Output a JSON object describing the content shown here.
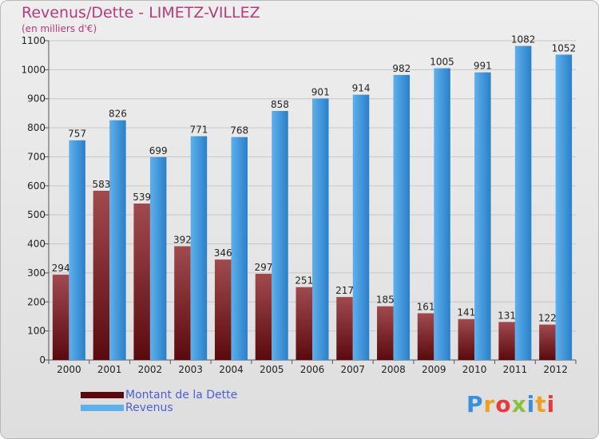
{
  "colors": {
    "dette_dark": "#5a0a0e",
    "dette_light": "#a04a4e",
    "revenus_dark": "#2a7fc8",
    "revenus_light": "#5eb0ec",
    "grid": "#c8c8c8",
    "axis_text": "#222222",
    "title": "#b83a7a",
    "legend_text": "#4a5ee0"
  },
  "logo": {
    "text": "Proxiti",
    "letter_colors": [
      "#3a8fd8",
      "#f0a020",
      "#e83a3a",
      "#88c040",
      "#3a8fd8",
      "#f0a020",
      "#e83a3a"
    ]
  },
  "chart_data": {
    "type": "bar",
    "title": "Revenus/Dette - LIMETZ-VILLEZ",
    "subtitle": "(en milliers d'€)",
    "xlabel": "",
    "ylabel": "",
    "ylim": [
      0,
      1100
    ],
    "yticks": [
      0,
      100,
      200,
      300,
      400,
      500,
      600,
      700,
      800,
      900,
      1000,
      1100
    ],
    "grid": true,
    "legend_position": "bottom-left",
    "categories": [
      "2000",
      "2001",
      "2002",
      "2003",
      "2004",
      "2005",
      "2006",
      "2007",
      "2008",
      "2009",
      "2010",
      "2011",
      "2012"
    ],
    "series": [
      {
        "name": "Montant de la Dette",
        "values": [
          294,
          583,
          539,
          392,
          346,
          297,
          251,
          217,
          185,
          161,
          141,
          131,
          122
        ]
      },
      {
        "name": "Revenus",
        "values": [
          757,
          826,
          699,
          771,
          768,
          858,
          901,
          914,
          982,
          1005,
          991,
          1082,
          1052
        ]
      }
    ]
  }
}
